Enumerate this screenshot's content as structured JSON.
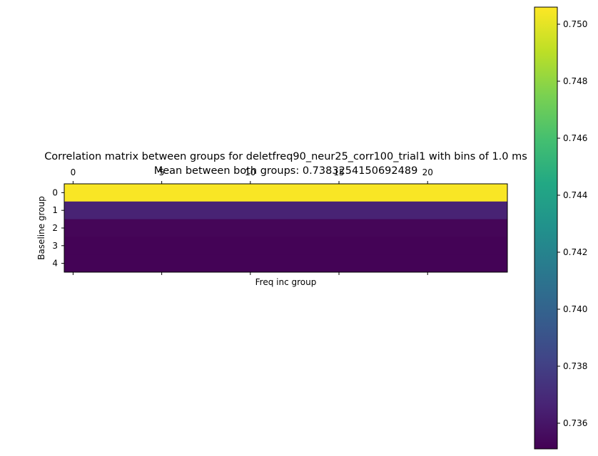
{
  "chart_data": [
    {
      "type": "heatmap",
      "title": "Correlation matrix between groups for deletfreq90_neur25_corr100_trial1 with bins of 1.0 ms",
      "subtitle": "Mean between both groups: 0.7383254150692489",
      "xlabel": "Freq inc group",
      "ylabel": "Baseline group",
      "x_tick_labels": [
        "0",
        "5",
        "10",
        "15",
        "20"
      ],
      "x_ticks": [
        0,
        5,
        10,
        15,
        20
      ],
      "y_tick_labels": [
        "0",
        "1",
        "2",
        "3",
        "4"
      ],
      "y_ticks": [
        0,
        1,
        2,
        3,
        4
      ],
      "n_cols": 25,
      "n_rows": 5,
      "row_values": [
        0.7505,
        0.7366,
        0.7353,
        0.7352,
        0.7352
      ],
      "colormap": "viridis",
      "colorbar": {
        "range": [
          0.7351,
          0.7506
        ],
        "tick_labels": [
          "0.736",
          "0.738",
          "0.740",
          "0.742",
          "0.744",
          "0.746",
          "0.748",
          "0.750"
        ],
        "ticks": [
          0.736,
          0.738,
          0.74,
          0.742,
          0.744,
          0.746,
          0.748,
          0.75
        ]
      }
    }
  ]
}
